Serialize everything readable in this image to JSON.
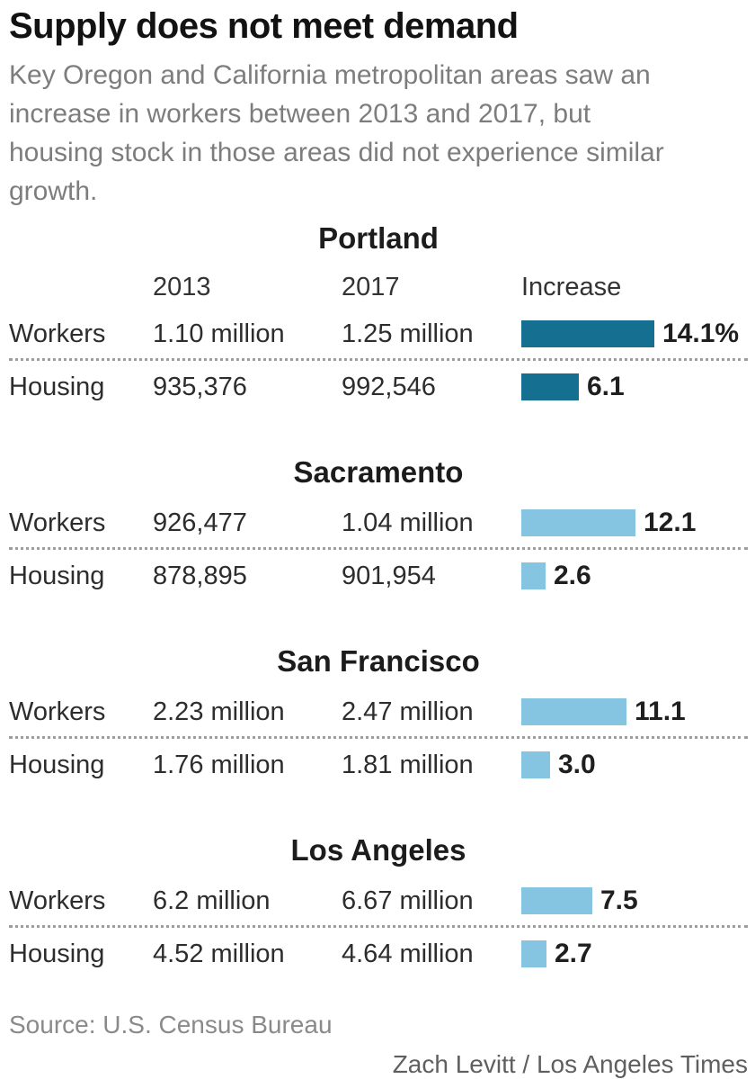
{
  "header": {
    "title": "Supply does not meet demand",
    "subtitle": "Key Oregon and California metropolitan areas saw an\nincrease in workers between 2013 and 2017, but\nhousing stock in those areas did not experience similar\ngrowth."
  },
  "colors": {
    "highlight_bar": "#146F90",
    "default_bar": "#86C5E1",
    "divider": "#9E9E9E"
  },
  "chart_data": {
    "type": "bar",
    "title": "Supply does not meet demand",
    "unit": "percent increase 2013-2017",
    "bar_orientation": "horizontal",
    "columns": {
      "year_2013": "2013",
      "year_2017": "2017",
      "increase": "Increase"
    },
    "sections": [
      {
        "city": "Portland",
        "highlighted": true,
        "rows": [
          {
            "label": "Workers",
            "v2013": "1.10 million",
            "v2017": "1.25 million",
            "increase": 14.1,
            "increase_label": "14.1%"
          },
          {
            "label": "Housing",
            "v2013": "935,376",
            "v2017": "992,546",
            "increase": 6.1,
            "increase_label": "6.1"
          }
        ]
      },
      {
        "city": "Sacramento",
        "highlighted": false,
        "rows": [
          {
            "label": "Workers",
            "v2013": "926,477",
            "v2017": "1.04 million",
            "increase": 12.1,
            "increase_label": "12.1"
          },
          {
            "label": "Housing",
            "v2013": "878,895",
            "v2017": "901,954",
            "increase": 2.6,
            "increase_label": "2.6"
          }
        ]
      },
      {
        "city": "San Francisco",
        "highlighted": false,
        "rows": [
          {
            "label": "Workers",
            "v2013": "2.23 million",
            "v2017": "2.47 million",
            "increase": 11.1,
            "increase_label": "11.1"
          },
          {
            "label": "Housing",
            "v2013": "1.76 million",
            "v2017": "1.81 million",
            "increase": 3.0,
            "increase_label": "3.0"
          }
        ]
      },
      {
        "city": "Los Angeles",
        "highlighted": false,
        "rows": [
          {
            "label": "Workers",
            "v2013": "6.2 million",
            "v2017": "6.67 million",
            "increase": 7.5,
            "increase_label": "7.5"
          },
          {
            "label": "Housing",
            "v2013": "4.52 million",
            "v2017": "4.64 million",
            "increase": 2.7,
            "increase_label": "2.7"
          }
        ]
      }
    ]
  },
  "footer": {
    "source": "Source: U.S. Census Bureau",
    "credit": "Zach Levitt / Los Angeles Times"
  }
}
